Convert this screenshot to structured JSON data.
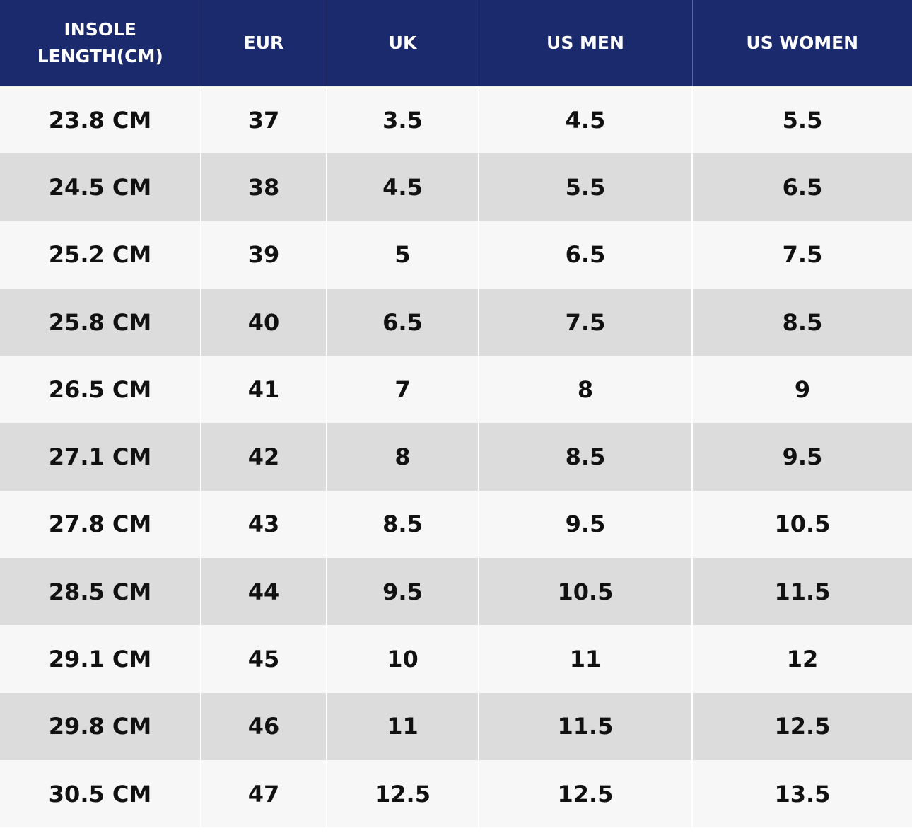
{
  "table": {
    "headers": [
      "INSOLE LENGTH(CM)",
      "EUR",
      "UK",
      "US MEN",
      "US WOMEN"
    ],
    "rows": [
      [
        "23.8 CM",
        "37",
        "3.5",
        "4.5",
        "5.5"
      ],
      [
        "24.5 CM",
        "38",
        "4.5",
        "5.5",
        "6.5"
      ],
      [
        "25.2 CM",
        "39",
        "5",
        "6.5",
        "7.5"
      ],
      [
        "25.8 CM",
        "40",
        "6.5",
        "7.5",
        "8.5"
      ],
      [
        "26.5 CM",
        "41",
        "7",
        "8",
        "9"
      ],
      [
        "27.1 CM",
        "42",
        "8",
        "8.5",
        "9.5"
      ],
      [
        "27.8 CM",
        "43",
        "8.5",
        "9.5",
        "10.5"
      ],
      [
        "28.5 CM",
        "44",
        "9.5",
        "10.5",
        "11.5"
      ],
      [
        "29.1 CM",
        "45",
        "10",
        "11",
        "12"
      ],
      [
        "29.8 CM",
        "46",
        "11",
        "11.5",
        "12.5"
      ],
      [
        "30.5 CM",
        "47",
        "12.5",
        "12.5",
        "13.5"
      ]
    ]
  }
}
